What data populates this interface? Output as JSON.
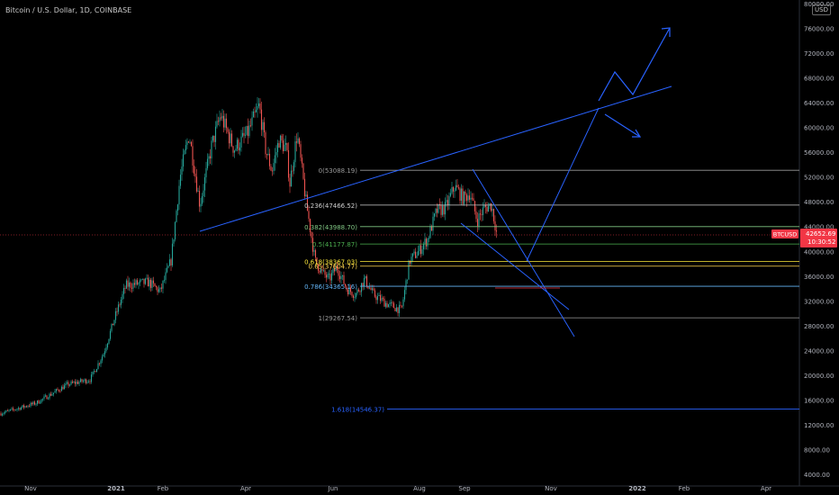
{
  "header": {
    "title": "Bitcoin / U.S. Dollar, 1D, COINBASE",
    "currency_button": "USD"
  },
  "chart_data": {
    "type": "candlestick",
    "symbol": "BTCUSD",
    "last_price": "42652.69",
    "countdown": "10:30:52",
    "ylim": [
      4000,
      80000
    ],
    "y_ticks": [
      "80000.00",
      "76000.00",
      "72000.00",
      "68000.00",
      "64000.00",
      "60000.00",
      "56000.00",
      "52000.00",
      "48000.00",
      "44000.00",
      "40000.00",
      "36000.00",
      "32000.00",
      "28000.00",
      "24000.00",
      "20000.00",
      "16000.00",
      "12000.00",
      "8000.00",
      "4000.00"
    ],
    "x_ticks": [
      "Nov",
      "2021",
      "Feb",
      "Apr",
      "Jun",
      "Aug",
      "Sep",
      "Nov",
      "2022",
      "Feb",
      "Apr"
    ],
    "fib_levels": [
      {
        "ratio": "0",
        "value": "53088.19",
        "label": "0(53088.19)",
        "color": "#9a9a9a"
      },
      {
        "ratio": "0.236",
        "value": "47466.52",
        "label": "0.236(47466.52)",
        "color": "#cfcfcf"
      },
      {
        "ratio": "0.382",
        "value": "43988.70",
        "label": "0.382(43988.70)",
        "color": "#81c784"
      },
      {
        "ratio": "0.5",
        "value": "41177.87",
        "label": "0.5(41177.87)",
        "color": "#4caf50"
      },
      {
        "ratio": "0.618",
        "value": "38367.03",
        "label": "0.618(38367.03)",
        "color": "#ffeb3b"
      },
      {
        "ratio": "0.65",
        "value": "37604.77",
        "label": "0.65(37604.77)",
        "color": "#ffd54f"
      },
      {
        "ratio": "0.786",
        "value": "34365.16",
        "label": "0.786(34365.16)",
        "color": "#64b5f6"
      },
      {
        "ratio": "1",
        "value": "29267.54",
        "label": "1(29267.54)",
        "color": "#9a9a9a"
      },
      {
        "ratio": "1.618",
        "value": "14546.37",
        "label": "1.618(14546.37)",
        "color": "#2962ff"
      }
    ],
    "colors": {
      "up": "#26a69a",
      "down": "#ef5350",
      "drawing": "#2962ff",
      "price_tag": "#f23645",
      "axis_text": "#b2b5be"
    }
  }
}
